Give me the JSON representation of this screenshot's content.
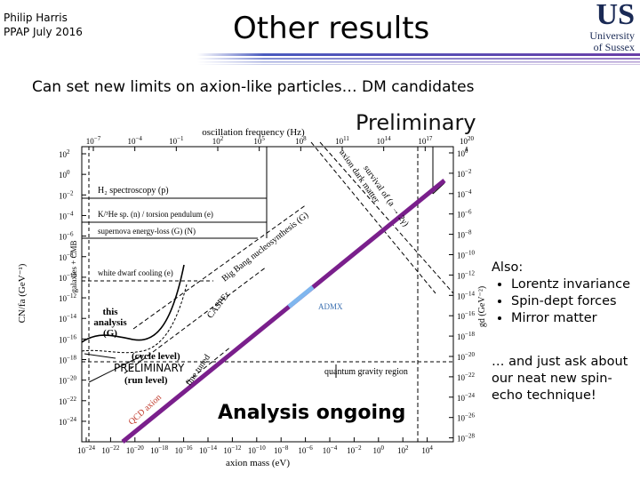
{
  "header": {
    "author_lines": [
      "Philip Harris",
      "PPAP July 2016"
    ],
    "title": "Other results"
  },
  "logo": {
    "mark": "US",
    "name_lines": [
      "University",
      "of Sussex"
    ]
  },
  "subtitle": "Can set new limits on axion-like particles… DM candidates",
  "figure": {
    "watermark": "Preliminary",
    "top_axis_label": "oscillation frequency (Hz)",
    "x_axis_label": "axion mass (eV)",
    "y_axis_label": "CN/fa (GeV⁻¹)",
    "y2_axis_label": "gd (GeV⁻²)",
    "tick_base": "10",
    "top_ticks": [
      "−7",
      "−4",
      "−1",
      "2",
      "5",
      "8",
      "11",
      "14",
      "17",
      "20"
    ],
    "x_ticks": [
      "−24",
      "−22",
      "−20",
      "−18",
      "−16",
      "−14",
      "−12",
      "−10",
      "−8",
      "−6",
      "−4",
      "−2",
      "0",
      "2",
      "4"
    ],
    "y_ticks": [
      "2",
      "0",
      "−2",
      "−4",
      "−6",
      "−8",
      "−10",
      "−12",
      "−14",
      "−16",
      "−18",
      "−20",
      "−22",
      "−24"
    ],
    "y2_ticks": [
      "0",
      "−2",
      "−4",
      "−6",
      "−8",
      "−10",
      "−12",
      "−14",
      "−16",
      "−18",
      "−20",
      "−22",
      "−24",
      "−26",
      "−28"
    ],
    "regions": [
      "H₂ spectroscopy (p)",
      "K/³He sp. (n) / torsion pendulum (e)",
      "supernova energy-loss (G) (N)",
      "white dwarf cooling (e)",
      "galaxies + CMB",
      "Big Bang nucleosynthesis (G)",
      "CASPEr",
      "axion dark matter",
      "survival of (a → 2γ)",
      "quantum gravity region",
      "fine tuned",
      "QCD axion",
      "ADMX"
    ],
    "analysis_lines": [
      "this",
      "analysis",
      "(G)"
    ],
    "cycle_level": "(cycle level)",
    "preliminary_stamp": "PRELIMINARY",
    "run_level": "(run level)",
    "analysis_ongoing": "Analysis ongoing"
  },
  "notes": {
    "heading": "Also:",
    "bullets": [
      "Lorentz invariance",
      "Spin-dept forces",
      "Mirror matter"
    ],
    "closing": "… and just ask about our neat new spin-echo technique!"
  }
}
